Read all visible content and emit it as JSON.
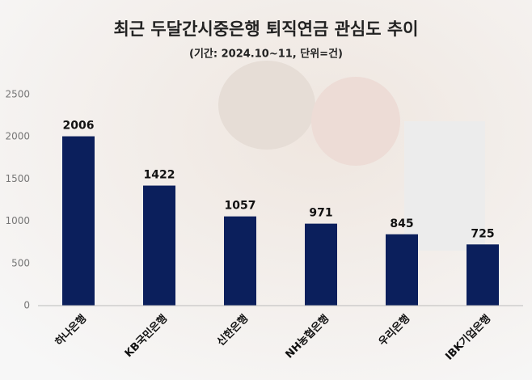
{
  "chart_data": {
    "type": "bar",
    "title": "최근 두달간시중은행 퇴직연금 관심도 추이",
    "subtitle": "(기간: 2024.10~11, 단위=건)",
    "categories": [
      "하나은행",
      "KB국민은행",
      "신한은행",
      "NH농협은행",
      "우리은행",
      "IBK기업은행"
    ],
    "values": [
      2006,
      1422,
      1057,
      971,
      845,
      725
    ],
    "color": "#0b1f5c",
    "ylim": [
      0,
      2500
    ],
    "yticks": [
      0,
      500,
      1000,
      1500,
      2000,
      2500
    ],
    "grid": false
  }
}
